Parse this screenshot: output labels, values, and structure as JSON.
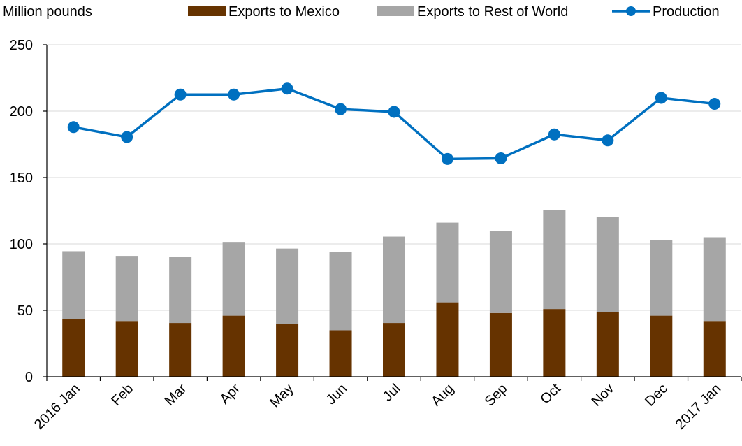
{
  "chart_data": {
    "type": "bar",
    "stacked": true,
    "ylabel": "Million pounds",
    "ylim": [
      0,
      250
    ],
    "yticks": [
      0,
      50,
      100,
      150,
      200,
      250
    ],
    "grid": true,
    "legend_position": "top",
    "categories": [
      "2016 Jan",
      "Feb",
      "Mar",
      "Apr",
      "May",
      "Jun",
      "Jul",
      "Aug",
      "Sep",
      "Oct",
      "Nov",
      "Dec",
      "2017 Jan"
    ],
    "series": [
      {
        "name": "Exports to Mexico",
        "kind": "bar",
        "color": "#663300",
        "values": [
          43.5,
          42,
          40.5,
          46,
          39.5,
          35,
          40.5,
          56,
          48,
          51,
          48.5,
          46,
          42
        ]
      },
      {
        "name": "Exports to Rest of World",
        "kind": "bar",
        "color": "#a6a6a6",
        "values": [
          51,
          49,
          50,
          55.5,
          57,
          59,
          65,
          60,
          62,
          74.5,
          71.5,
          57,
          63
        ]
      },
      {
        "name": "Production",
        "kind": "line",
        "color": "#0070c0",
        "values": [
          188,
          180.5,
          212.5,
          212.5,
          217,
          201.5,
          199.5,
          164,
          164.5,
          182.5,
          178,
          210,
          205.5
        ]
      }
    ]
  }
}
